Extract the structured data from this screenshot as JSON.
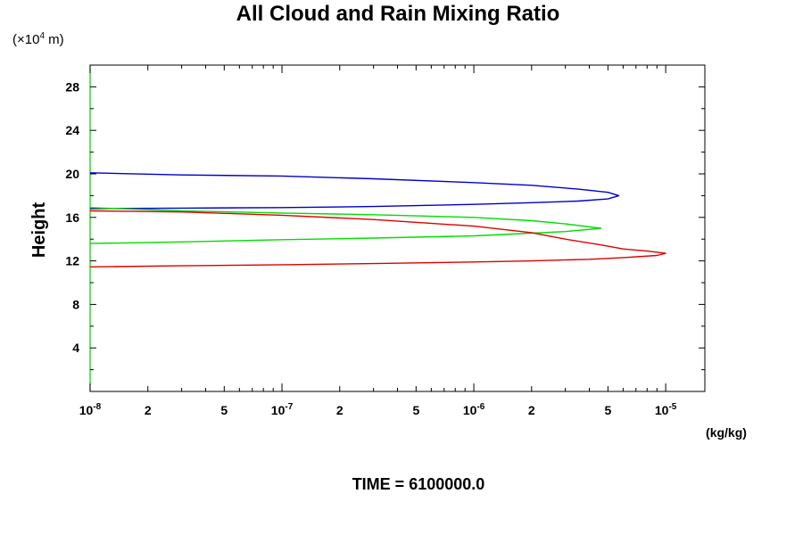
{
  "chart_data": {
    "type": "line",
    "title": "All Cloud and Rain Mixing Ratio",
    "ylabel": "Height",
    "yunit": "(×10⁴ m)",
    "yunit_prefix": "(×10",
    "yunit_exp": "4",
    "yunit_suffix": " m)",
    "xunit": "(kg/kg)",
    "time_label": "TIME = 6100000.0",
    "xscale": "log",
    "xlim": [
      1e-08,
      1.6e-05
    ],
    "ylim": [
      0,
      30
    ],
    "y_ticks": [
      {
        "value": 4,
        "label": "4"
      },
      {
        "value": 8,
        "label": "8"
      },
      {
        "value": 12,
        "label": "12"
      },
      {
        "value": 16,
        "label": "16"
      },
      {
        "value": 20,
        "label": "20"
      },
      {
        "value": 24,
        "label": "24"
      },
      {
        "value": 28,
        "label": "28"
      }
    ],
    "x_ticks": [
      {
        "value": 1e-08,
        "base": "10",
        "exp": "-8"
      },
      {
        "value": 2e-08,
        "base": "2",
        "exp": ""
      },
      {
        "value": 5e-08,
        "base": "5",
        "exp": ""
      },
      {
        "value": 1e-07,
        "base": "10",
        "exp": "-7"
      },
      {
        "value": 2e-07,
        "base": "2",
        "exp": ""
      },
      {
        "value": 5e-07,
        "base": "5",
        "exp": ""
      },
      {
        "value": 1e-06,
        "base": "10",
        "exp": "-6"
      },
      {
        "value": 2e-06,
        "base": "2",
        "exp": ""
      },
      {
        "value": 5e-06,
        "base": "5",
        "exp": ""
      },
      {
        "value": 1e-05,
        "base": "10",
        "exp": "-5"
      }
    ],
    "series": [
      {
        "name": "blue",
        "color": "#0000cc",
        "points": [
          [
            1e-08,
            20.1
          ],
          [
            3e-08,
            19.9
          ],
          [
            1e-07,
            19.8
          ],
          [
            3e-07,
            19.55
          ],
          [
            1e-06,
            19.2
          ],
          [
            2e-06,
            18.95
          ],
          [
            3.5e-06,
            18.6
          ],
          [
            5e-06,
            18.3
          ],
          [
            5.7e-06,
            18.0
          ],
          [
            5e-06,
            17.7
          ],
          [
            3.5e-06,
            17.5
          ],
          [
            2e-06,
            17.35
          ],
          [
            1e-06,
            17.2
          ],
          [
            3e-07,
            17.0
          ],
          [
            1e-07,
            16.9
          ],
          [
            3e-08,
            16.85
          ],
          [
            1e-08,
            16.8
          ]
        ]
      },
      {
        "name": "green",
        "color": "#00dd00",
        "points": [
          [
            1e-08,
            16.9
          ],
          [
            3e-08,
            16.6
          ],
          [
            1e-07,
            16.4
          ],
          [
            3e-07,
            16.25
          ],
          [
            1e-06,
            16.0
          ],
          [
            2e-06,
            15.7
          ],
          [
            3e-06,
            15.4
          ],
          [
            4.6e-06,
            15.0
          ],
          [
            3e-06,
            14.7
          ],
          [
            2e-06,
            14.55
          ],
          [
            1e-06,
            14.3
          ],
          [
            3e-07,
            14.1
          ],
          [
            1e-07,
            13.95
          ],
          [
            3e-08,
            13.75
          ],
          [
            1e-08,
            13.6
          ]
        ]
      },
      {
        "name": "red",
        "color": "#dd0000",
        "points": [
          [
            1e-08,
            16.6
          ],
          [
            3e-08,
            16.5
          ],
          [
            1e-07,
            16.2
          ],
          [
            3e-07,
            15.8
          ],
          [
            1e-06,
            15.2
          ],
          [
            2e-06,
            14.6
          ],
          [
            3e-06,
            14.0
          ],
          [
            4.5e-06,
            13.5
          ],
          [
            6e-06,
            13.1
          ],
          [
            8e-06,
            12.9
          ],
          [
            1e-05,
            12.7
          ],
          [
            9e-06,
            12.5
          ],
          [
            6e-06,
            12.3
          ],
          [
            4e-06,
            12.15
          ],
          [
            2e-06,
            12.0
          ],
          [
            1e-06,
            11.9
          ],
          [
            3e-07,
            11.75
          ],
          [
            1e-07,
            11.65
          ],
          [
            3e-08,
            11.55
          ],
          [
            1e-08,
            11.45
          ]
        ]
      }
    ]
  }
}
